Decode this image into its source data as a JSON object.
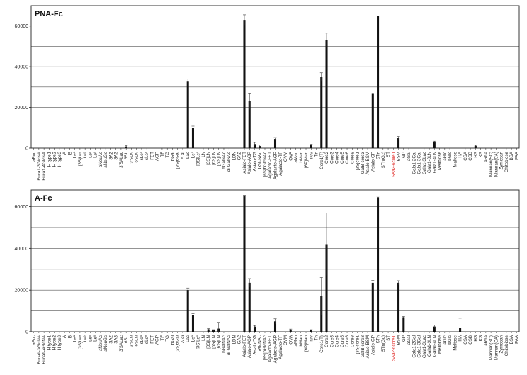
{
  "chart_data": [
    {
      "type": "bar",
      "title": "PNA-Fc",
      "ylim": [
        0,
        70000
      ],
      "yticks": [
        0,
        20000,
        40000,
        60000
      ],
      "ytick_labels": [
        "0",
        "20000",
        "40000",
        "60000"
      ],
      "grid": "horizontal lines at 10000 intervals",
      "categories": [
        "aFuc",
        "Fuca1-3GlcNA",
        "Fuca1-4GlcNA",
        "H type1",
        "H type2",
        "H type3",
        "A",
        "B",
        "Leᵃ",
        "[3S]Leᵃ",
        "Leᵇ",
        "Leˣ",
        "Leʸ",
        "aNeuAc",
        "aNeuGc",
        "SA2",
        "SA3",
        "3'SALac",
        "6SL",
        "3'SLN",
        "6SLN",
        "sLeᵃ",
        "sLeˣ",
        "FET",
        "AGP",
        "TF",
        "TG",
        "bGal",
        "[3S]bGal",
        "A-di",
        "Lac",
        "Leᵃ",
        "[3S]Leˣ",
        "LN",
        "[3S]LN",
        "[6S]LN",
        "[6'S]LN",
        "bGalNAc",
        "di-GalNAc",
        "LDN",
        "GA2",
        "Asialo-FET",
        "Asialo-AGP",
        "Asialo-TG",
        "bGlcNAc",
        "[6S]bGlcNAc",
        "Agalacto-FET",
        "Agalacto-AGP",
        "Agalacto-TF",
        "OVM",
        "OVA",
        "aMan",
        "bMan",
        "[6P]Man",
        "INV",
        "Tn",
        "Core1(T)",
        "Core2",
        "Core3",
        "Core4",
        "Core5",
        "Core6",
        "Core8",
        "[3S]core1",
        "GalB-core3",
        "Asialo-BSM",
        "Asialo-GP",
        "STn",
        "STn(Gc)",
        "ST",
        "SAa2-6core1",
        "BSM",
        "GP",
        "aGal",
        "Gala1-2Gal",
        "Gala1-3Gal",
        "Gala1-3Lac",
        "Gala1-3LN",
        "Gala1-4LN",
        "Melibiose",
        "aGlc",
        "bGlc",
        "Maltose",
        "HA",
        "CSA",
        "CSB",
        "HS",
        "KS",
        "aRha",
        "Mannan(SC)",
        "Mannan(CA)",
        "Zymosan",
        "Chitobiose",
        "BSA",
        "PAA"
      ],
      "highlight_categories": [
        "SAa2-6core1"
      ],
      "highlight_color": "#e0201c",
      "bar_color": "#111111",
      "values": [
        0,
        0,
        0,
        0,
        0,
        0,
        0,
        0,
        0,
        0,
        0,
        0,
        0,
        0,
        0,
        0,
        0,
        0,
        800,
        0,
        0,
        0,
        0,
        0,
        0,
        0,
        0,
        0,
        0,
        0,
        33000,
        10000,
        0,
        0,
        0,
        0,
        0,
        0,
        0,
        0,
        0,
        63000,
        23000,
        2000,
        1000,
        0,
        0,
        4500,
        0,
        0,
        0,
        0,
        0,
        0,
        1500,
        0,
        35000,
        53000,
        0,
        0,
        0,
        0,
        0,
        0,
        0,
        0,
        27000,
        65000,
        0,
        0,
        0,
        5000,
        0,
        0,
        0,
        0,
        0,
        0,
        3000,
        0,
        0,
        0,
        0,
        0,
        0,
        0,
        1200,
        0,
        0,
        0,
        0,
        0,
        0,
        0,
        0
      ],
      "errors": [
        0,
        0,
        0,
        0,
        0,
        0,
        0,
        0,
        0,
        0,
        0,
        0,
        0,
        0,
        0,
        0,
        0,
        0,
        400,
        0,
        0,
        0,
        0,
        0,
        0,
        0,
        0,
        0,
        0,
        0,
        1000,
        800,
        0,
        0,
        0,
        0,
        0,
        0,
        0,
        0,
        0,
        2500,
        4000,
        800,
        500,
        0,
        0,
        700,
        0,
        0,
        0,
        0,
        0,
        0,
        400,
        0,
        2000,
        3500,
        0,
        0,
        0,
        0,
        0,
        0,
        0,
        0,
        1000,
        0,
        0,
        0,
        0,
        700,
        0,
        0,
        0,
        0,
        0,
        0,
        400,
        0,
        0,
        0,
        0,
        0,
        0,
        0,
        400,
        0,
        0,
        0,
        0,
        0,
        0,
        0,
        0
      ]
    },
    {
      "type": "bar",
      "title": "A-Fc",
      "ylim": [
        0,
        68000
      ],
      "yticks": [
        0,
        20000,
        40000,
        60000
      ],
      "ytick_labels": [
        "0",
        "20000",
        "40000",
        "60000"
      ],
      "grid": "horizontal lines at 10000 intervals",
      "categories": [
        "aFuc",
        "Fuca1-3GlcNA",
        "Fuca1-4GlcNA",
        "H type1",
        "H type2",
        "H type3",
        "A",
        "B",
        "Leᵃ",
        "[3S]Leᵃ",
        "Leᵇ",
        "Leˣ",
        "Leʸ",
        "aNeuAc",
        "aNeuGc",
        "SA2",
        "SA3",
        "3'SALac",
        "6SL",
        "3'SLN",
        "6SLN",
        "sLeᵃ",
        "sLeˣ",
        "FET",
        "AGP",
        "TF",
        "TG",
        "bGal",
        "[3S]bGal",
        "A-di",
        "Lac",
        "Leᵃ",
        "[3S]Leˣ",
        "LN",
        "[3S]LN",
        "[6S]LN",
        "[6'S]LN",
        "bGalNAc",
        "di-GalNAc",
        "LDN",
        "GA2",
        "Asialo-FET",
        "Asialo-AGP",
        "Asialo-TG",
        "bGlcNAc",
        "[6S]bGlcNAc",
        "Agalacto-FET",
        "Agalacto-AGP",
        "Agalacto-TF",
        "OVM",
        "OVA",
        "aMan",
        "bMan",
        "[6P]Man",
        "INV",
        "Tn",
        "Core1(T)",
        "Core2",
        "Core3",
        "Core4",
        "Core5",
        "Core6",
        "Core8",
        "[3S]core1",
        "GalB-core3",
        "Asialo-BSM",
        "Asialo-GP",
        "STn",
        "STn(Gc)",
        "ST",
        "SAa2-6core1",
        "BSM",
        "GP",
        "aGal",
        "Gala1-2Gal",
        "Gala1-3Gal",
        "Gala1-3Lac",
        "Gala1-3LN",
        "Gala1-4LN",
        "Melibiose",
        "aGlc",
        "bGlc",
        "Maltose",
        "HA",
        "CSA",
        "CSB",
        "HS",
        "KS",
        "aRha",
        "Mannan(SC)",
        "Mannan(CA)",
        "Zymosan",
        "Chitobiose",
        "BSA",
        "PAA"
      ],
      "highlight_categories": [
        "SAa2-6core1"
      ],
      "highlight_color": "#e0201c",
      "bar_color": "#111111",
      "values": [
        0,
        0,
        0,
        0,
        0,
        0,
        0,
        0,
        0,
        0,
        0,
        0,
        0,
        0,
        0,
        0,
        0,
        0,
        0,
        0,
        0,
        0,
        0,
        0,
        0,
        0,
        0,
        0,
        0,
        0,
        20000,
        8000,
        0,
        0,
        1200,
        700,
        1500,
        0,
        0,
        0,
        0,
        65000,
        23500,
        2500,
        0,
        0,
        0,
        5000,
        0,
        0,
        1000,
        0,
        0,
        0,
        700,
        0,
        17000,
        42000,
        0,
        0,
        0,
        0,
        0,
        0,
        0,
        0,
        23500,
        64500,
        0,
        0,
        0,
        23500,
        7000,
        0,
        0,
        0,
        0,
        0,
        2500,
        0,
        0,
        0,
        0,
        2000,
        0,
        0,
        0,
        0,
        0,
        0,
        0,
        0,
        0,
        0,
        0
      ],
      "errors": [
        0,
        0,
        0,
        0,
        0,
        0,
        0,
        0,
        0,
        0,
        0,
        0,
        0,
        0,
        0,
        0,
        0,
        0,
        0,
        0,
        0,
        0,
        0,
        0,
        0,
        0,
        0,
        0,
        0,
        0,
        1000,
        700,
        0,
        0,
        300,
        300,
        3000,
        0,
        0,
        0,
        0,
        500,
        2000,
        500,
        0,
        0,
        0,
        1200,
        0,
        0,
        300,
        0,
        0,
        0,
        300,
        0,
        9000,
        15000,
        0,
        0,
        0,
        0,
        0,
        0,
        0,
        0,
        1200,
        500,
        0,
        0,
        0,
        1000,
        300,
        0,
        0,
        0,
        0,
        0,
        700,
        0,
        0,
        0,
        0,
        4500,
        0,
        0,
        0,
        0,
        0,
        0,
        0,
        0,
        0,
        0,
        0
      ]
    }
  ]
}
